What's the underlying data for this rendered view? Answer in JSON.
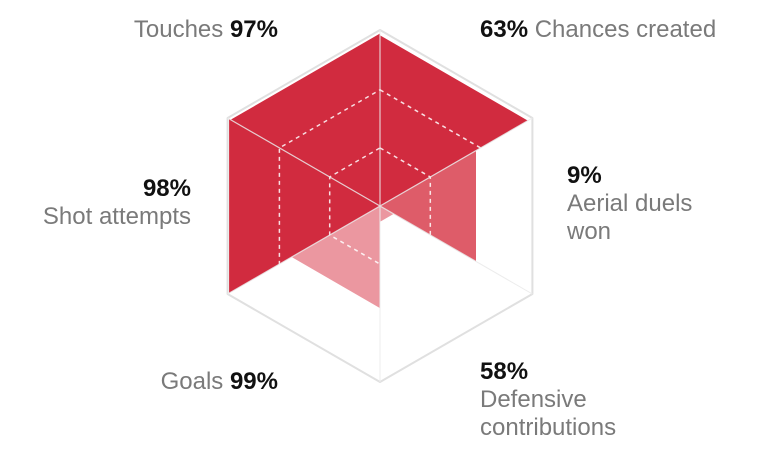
{
  "chart_data": {
    "type": "radar",
    "axes": [
      {
        "name": "Touches",
        "value": 97,
        "value_label": "97%"
      },
      {
        "name": "Chances created",
        "value": 63,
        "value_label": "63%"
      },
      {
        "name": "Aerial duels won",
        "line1": "Aerial duels",
        "line2": "won",
        "value": 9,
        "value_label": "9%"
      },
      {
        "name": "Defensive contributions",
        "line1": "Defensive",
        "line2": "contributions",
        "value": 58,
        "value_label": "58%"
      },
      {
        "name": "Goals",
        "value": 99,
        "value_label": "99%"
      },
      {
        "name": "Shot attempts",
        "value": 98,
        "value_label": "98%"
      }
    ],
    "range": [
      0,
      100
    ],
    "grid_levels": [
      33,
      66,
      100
    ],
    "colors": {
      "strong": "#d12b3f",
      "medium": "#de5c69",
      "light": "#eb97a0",
      "grid": "#e0e0e0"
    }
  }
}
